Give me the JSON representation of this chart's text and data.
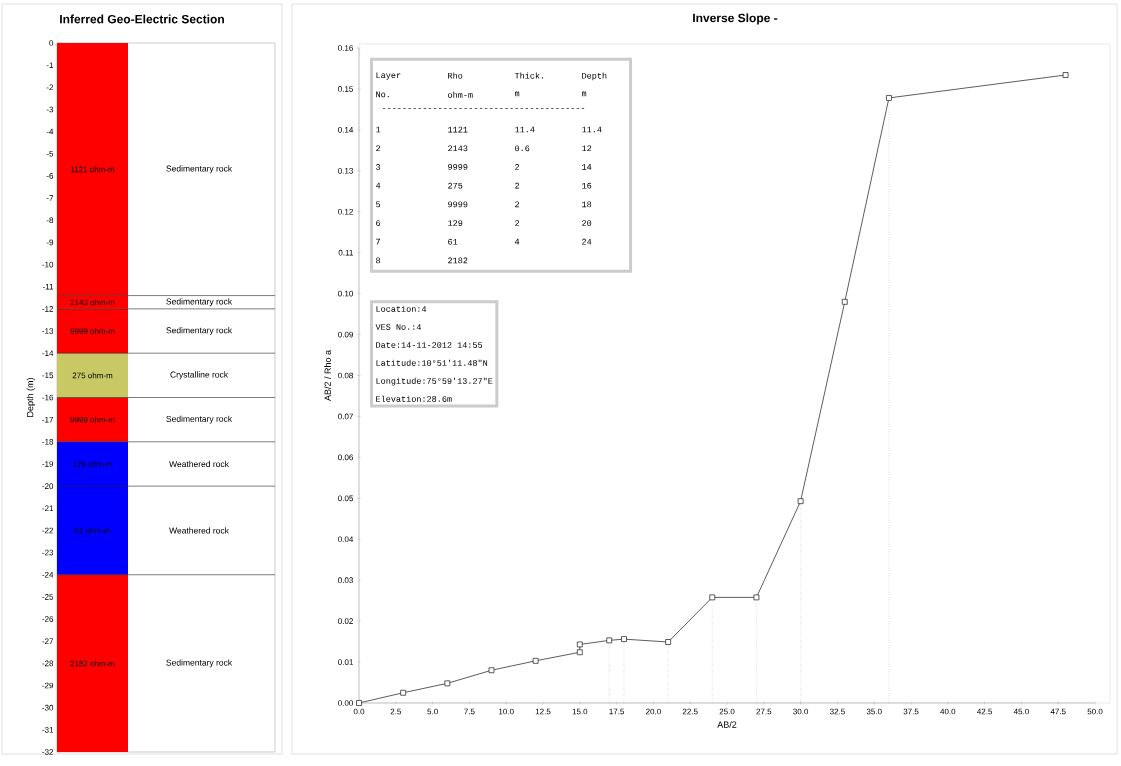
{
  "chart_data": [
    {
      "type": "bar",
      "stacked": true,
      "title": "Inferred Geo-Electric Section",
      "ylabel": "Depth (m)",
      "categories": [
        null
      ],
      "tick_labels": "y",
      "series": [
        {
          "name": "1121 ohm-m",
          "color": "#ff0000",
          "values": [
            -11.4
          ]
        },
        {
          "name": "2143 ohm-m",
          "color": "#ff0000",
          "values": [
            -0.6
          ]
        },
        {
          "name": "9999 ohm-m",
          "color": "#ff0000",
          "values": [
            -2
          ]
        },
        {
          "name": "275 ohm-m",
          "color": "#c8c864",
          "values": [
            -2
          ]
        },
        {
          "name": "9999 ohm-m",
          "color": "#ff0000",
          "values": [
            -2
          ]
        },
        {
          "name": "129 ohm-m",
          "color": "#0000ff",
          "values": [
            -2
          ]
        },
        {
          "name": "61 ohm-m",
          "color": "#0000ff",
          "values": [
            -4
          ]
        },
        {
          "name": "2182 ohm-m",
          "color": "#ff0000",
          "values": [
            -8
          ]
        }
      ],
      "ylim": [
        -32,
        0
      ],
      "yticks": [
        0,
        -1,
        -2,
        -3,
        -4,
        -5,
        -6,
        -7,
        -8,
        -9,
        -10,
        -11,
        -12,
        -13,
        -14,
        -15,
        -16,
        -17,
        -18,
        -19,
        -20,
        -21,
        -22,
        -23,
        -24,
        -25,
        -26,
        -27,
        -28,
        -29,
        -30,
        -31,
        -32
      ],
      "annotations": [
        "Sedimentary rock",
        "Sedimentary rock",
        "Sedimentary rock",
        "Crystalline rock",
        "Sedimentary rock",
        "Weathered rock",
        "Weathered rock",
        "Sedimentary rock"
      ],
      "ref_lines": [
        {
          "axis": "y",
          "value": -11.4,
          "label": null
        },
        {
          "axis": "y",
          "value": -12,
          "label": null
        },
        {
          "axis": "y",
          "value": -14,
          "label": null
        },
        {
          "axis": "y",
          "value": -16,
          "label": null
        },
        {
          "axis": "y",
          "value": -18,
          "label": null
        },
        {
          "axis": "y",
          "value": -20,
          "label": null
        },
        {
          "axis": "y",
          "value": -24,
          "label": null
        }
      ]
    },
    {
      "type": "line",
      "title": "Inverse Slope -",
      "xlabel": "AB/2",
      "ylabel": "AB/2 / Rho a",
      "marker": "square",
      "color": "#333333",
      "x": [
        0,
        3,
        6,
        9,
        12,
        15,
        15,
        17,
        18,
        21,
        24,
        27,
        30,
        33,
        36,
        48
      ],
      "values": [
        0,
        0.0025,
        0.0048,
        0.008,
        0.0103,
        0.0124,
        0.0143,
        0.0153,
        0.0156,
        0.0149,
        0.0258,
        0.0258,
        0.0493,
        0.098,
        0.1478,
        0.1534
      ],
      "xlim": [
        0,
        50
      ],
      "xticks": [
        {
          "value": 0,
          "label": "0.0"
        },
        {
          "value": 2.5,
          "label": "2.5"
        },
        {
          "value": 5,
          "label": "5.0"
        },
        {
          "value": 7.5,
          "label": "7.5"
        },
        {
          "value": 10,
          "label": "10.0"
        },
        {
          "value": 12.5,
          "label": "12.5"
        },
        {
          "value": 15,
          "label": "15.0"
        },
        {
          "value": 17.5,
          "label": "17.5"
        },
        {
          "value": 20,
          "label": "20.0"
        },
        {
          "value": 22.5,
          "label": "22.5"
        },
        {
          "value": 25,
          "label": "25.0"
        },
        {
          "value": 27.5,
          "label": "27.5"
        },
        {
          "value": 30,
          "label": "30.0"
        },
        {
          "value": 32.5,
          "label": "32.5"
        },
        {
          "value": 35,
          "label": "35.0"
        },
        {
          "value": 37.5,
          "label": "37.5"
        },
        {
          "value": 40,
          "label": "40.0"
        },
        {
          "value": 42.5,
          "label": "42.5"
        },
        {
          "value": 45,
          "label": "45.0"
        },
        {
          "value": 47.5,
          "label": "47.5"
        },
        {
          "value": 50,
          "label": "50.0"
        }
      ],
      "ylim": [
        0,
        0.16
      ],
      "yticks": [
        {
          "value": 0,
          "label": "0.00"
        },
        {
          "value": 0.01,
          "label": "0.01"
        },
        {
          "value": 0.02,
          "label": "0.02"
        },
        {
          "value": 0.03,
          "label": "0.03"
        },
        {
          "value": 0.04,
          "label": "0.04"
        },
        {
          "value": 0.05,
          "label": "0.05"
        },
        {
          "value": 0.06,
          "label": "0.06"
        },
        {
          "value": 0.07,
          "label": "0.07"
        },
        {
          "value": 0.08,
          "label": "0.08"
        },
        {
          "value": 0.09,
          "label": "0.09"
        },
        {
          "value": 0.1,
          "label": "0.10"
        },
        {
          "value": 0.11,
          "label": "0.11"
        },
        {
          "value": 0.12,
          "label": "0.12"
        },
        {
          "value": 0.13,
          "label": "0.13"
        },
        {
          "value": 0.14,
          "label": "0.14"
        },
        {
          "value": 0.15,
          "label": "0.15"
        },
        {
          "value": 0.16,
          "label": "0.16"
        }
      ],
      "ref_lines": [
        {
          "axis": "x",
          "value": 17,
          "label": null,
          "line_style": "dotted"
        },
        {
          "axis": "x",
          "value": 18,
          "label": null,
          "line_style": "dotted"
        },
        {
          "axis": "x",
          "value": 21,
          "label": null,
          "line_style": "dotted"
        },
        {
          "axis": "x",
          "value": 24,
          "label": null,
          "line_style": "dotted"
        },
        {
          "axis": "x",
          "value": 27,
          "label": null,
          "line_style": "dotted"
        },
        {
          "axis": "x",
          "value": 30,
          "label": null,
          "line_style": "dotted"
        },
        {
          "axis": "x",
          "value": 36,
          "label": null,
          "line_style": "dotted"
        }
      ],
      "annotations": [
        "Layer",
        "Rho",
        "Thick.",
        "Depth",
        "No.",
        "ohm-m",
        "m",
        "m",
        "----------------------------------------",
        "1",
        "1121",
        "11.4",
        "11.4",
        "2",
        "2143",
        "0.6",
        "12",
        "3",
        "9999",
        "2",
        "14",
        "4",
        "275",
        "2",
        "16",
        "5",
        "9999",
        "2",
        "18",
        "6",
        "129",
        "2",
        "20",
        "7",
        "61",
        "4",
        "24",
        "8",
        "2182",
        "Location:4",
        "VES No.:4",
        "Date:14-11-2012 14:55",
        "Latitude:10°51'11.48\"N",
        "Longitude:75°59'13.27\"E",
        "Elevation:28.6m"
      ]
    }
  ]
}
